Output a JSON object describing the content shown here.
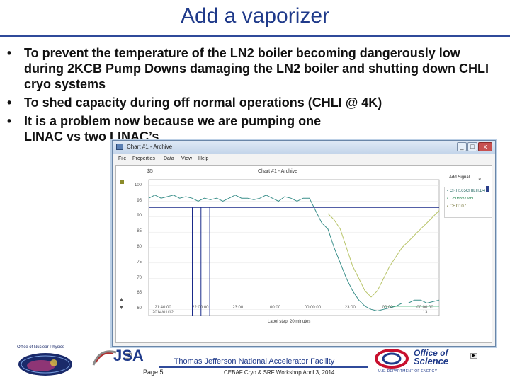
{
  "slide": {
    "title": "Add a vaporizer",
    "bullets": [
      "To prevent the temperature of the LN2 boiler becoming dangerously low during 2KCB Pump Downs damaging the LN2 boiler and shutting down CHLI cryo systems",
      "To shed capacity during off normal operations (CHLI @ 4K)",
      "It is a problem now because we are pumping one LINAC vs two LINAC’s"
    ],
    "bullet_glyph": "•"
  },
  "window": {
    "title": "Chart #1 - Archive",
    "menu": [
      "File",
      "Properties",
      "Data",
      "View",
      "Help"
    ],
    "buttons": {
      "minimize": "_",
      "maximize": "□",
      "close": "x"
    }
  },
  "chart_panel": {
    "live_label": "$5",
    "chart_title": "Chart #1 - Archive",
    "add_signal_label": "Add Signal",
    "legend": [
      {
        "label": "CRH165CHILH.D4",
        "color": "#2e8b57"
      },
      {
        "label": "CFIH357MH",
        "color": "#3cb371"
      },
      {
        "label": "CHI1107",
        "color": "#b8c468"
      }
    ],
    "xlabel": "Label step: 20 minutes"
  },
  "chart_data": {
    "type": "line",
    "ylim": [
      58,
      102
    ],
    "yticks": [
      100,
      95,
      90,
      85,
      80,
      75,
      70,
      65,
      60
    ],
    "xticks": [
      [
        "21:40:00",
        "2014/01/12"
      ],
      [
        "22:00:00",
        ""
      ],
      [
        "23:00",
        ""
      ],
      [
        "00:00",
        ""
      ],
      [
        "00:00:00",
        ""
      ],
      [
        "23:00",
        ""
      ],
      [
        "00:00",
        ""
      ],
      [
        "00:00:00",
        "13"
      ]
    ],
    "series": [
      {
        "name": "CRH165CHILH.D4",
        "color": "#3a8f8a",
        "values": [
          96,
          97,
          96,
          96.5,
          97,
          96,
          96.5,
          96,
          95,
          96,
          95.5,
          96,
          95,
          96,
          97,
          96,
          96,
          95.5,
          96,
          97,
          96,
          95,
          96.5,
          96,
          95,
          96,
          96,
          92,
          88,
          86,
          80,
          75,
          70,
          66,
          63,
          61,
          60,
          59.5,
          60,
          60.5,
          61,
          62,
          62,
          63,
          63,
          62,
          62.5,
          63
        ]
      },
      {
        "name": "CFIH357MH",
        "color": "#3cb371",
        "values": [
          null,
          null,
          null,
          null,
          null,
          null,
          null,
          null,
          null,
          null,
          null,
          null,
          null,
          null,
          null,
          null,
          null,
          null,
          null,
          null,
          null,
          null,
          null,
          null,
          null,
          null,
          null,
          null,
          null,
          null,
          null,
          null,
          null,
          null,
          null,
          null,
          null,
          null,
          61,
          61,
          61,
          61,
          61,
          61,
          61,
          61,
          61,
          61
        ]
      },
      {
        "name": "CHI1107",
        "color": "#b8c468",
        "values": [
          null,
          null,
          null,
          null,
          null,
          null,
          null,
          null,
          null,
          null,
          null,
          null,
          null,
          null,
          null,
          null,
          null,
          null,
          null,
          null,
          null,
          null,
          null,
          null,
          null,
          null,
          null,
          null,
          null,
          91,
          89,
          86,
          80,
          74,
          70,
          66,
          64,
          66,
          70,
          74,
          77,
          80,
          82,
          84,
          86,
          88,
          90,
          92
        ]
      }
    ],
    "reference_line": 93,
    "markers": 3
  },
  "footer": {
    "lab": "Thomas Jefferson National Accelerator Facility",
    "page": "Page 5",
    "event": "CEBAF Cryo & SRF Workshop April 3, 2014",
    "left_logo_text": "Office of Nuclear Physics",
    "jsa": "JSA",
    "oos_office": "Office of",
    "oos_science": "Science",
    "oos_doe": "U.S. DEPARTMENT OF ENERGY"
  }
}
